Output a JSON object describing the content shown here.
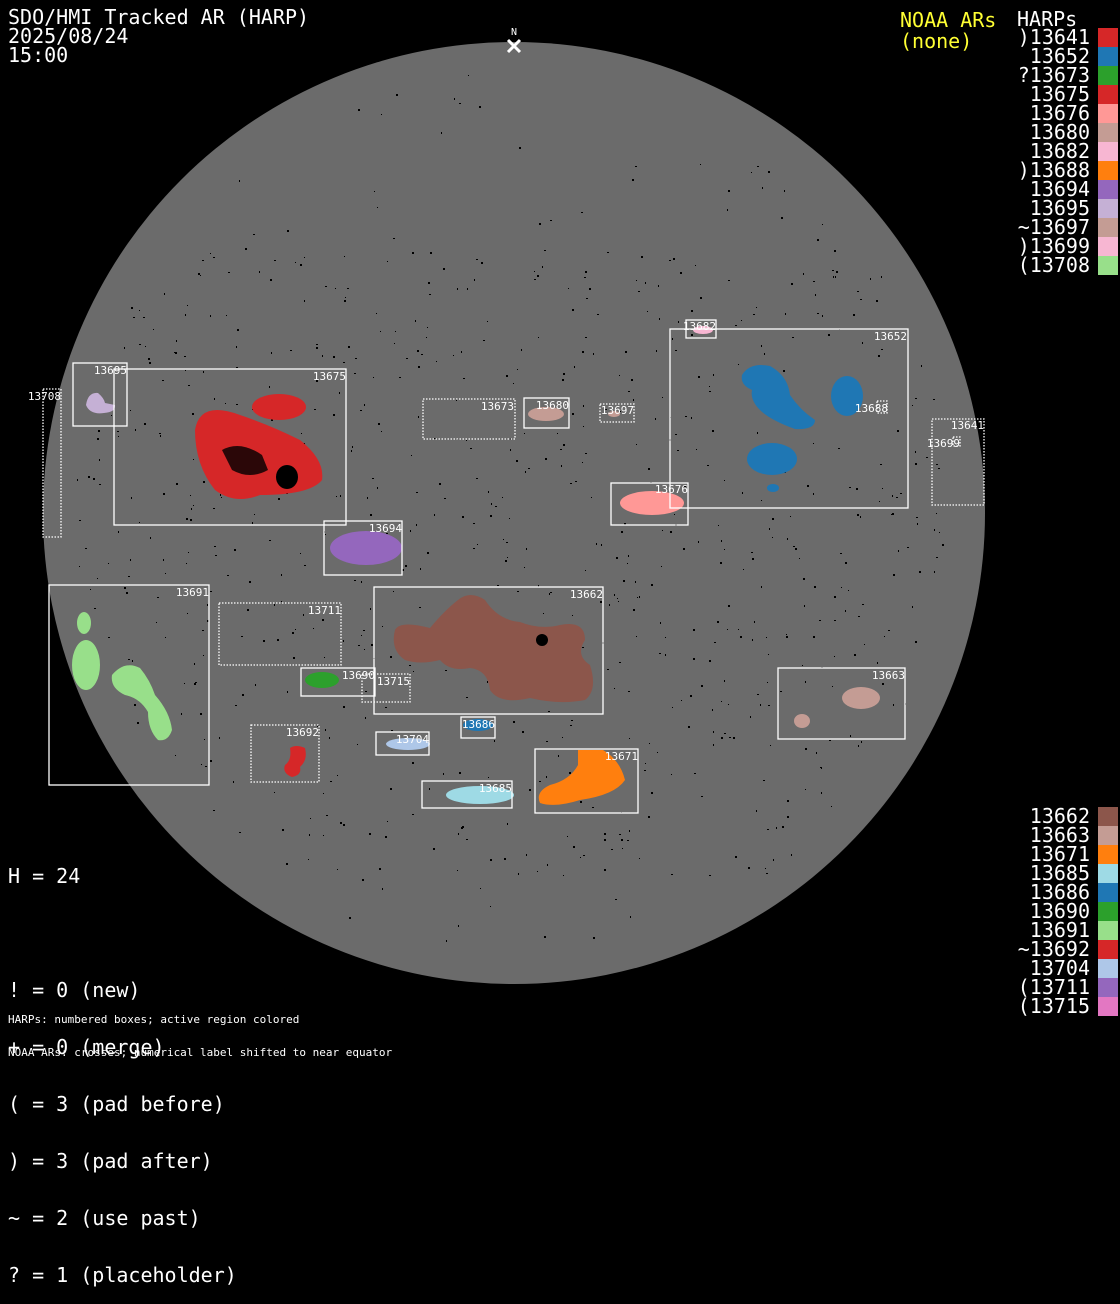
{
  "header": {
    "title": "SDO/HMI Tracked AR (HARP)",
    "date": "2025/08/24",
    "time": "15:00"
  },
  "north_label": "N",
  "noaa": {
    "title": "NOAA ARs",
    "value": "(none)",
    "color": "#ffff33"
  },
  "harps_title": "HARPs",
  "legend_top": [
    {
      "label": ")13641",
      "color": "#d62728"
    },
    {
      "label": "13652",
      "color": "#1f77b4"
    },
    {
      "label": "?13673",
      "color": "#2ca02c"
    },
    {
      "label": "13675",
      "color": "#d62728"
    },
    {
      "label": "13676",
      "color": "#ff9896"
    },
    {
      "label": "13680",
      "color": "#c49c94"
    },
    {
      "label": "13682",
      "color": "#f7b6d2"
    },
    {
      "label": ")13688",
      "color": "#ff7f0e"
    },
    {
      "label": "13694",
      "color": "#9467bd"
    },
    {
      "label": "13695",
      "color": "#c5b0d5"
    },
    {
      "label": "~13697",
      "color": "#c49c94"
    },
    {
      "label": ")13699",
      "color": "#f7b6d2"
    },
    {
      "label": "(13708",
      "color": "#98df8a"
    }
  ],
  "legend_bottom": [
    {
      "label": "13662",
      "color": "#8c564b"
    },
    {
      "label": "13663",
      "color": "#c49c94"
    },
    {
      "label": "13671",
      "color": "#ff7f0e"
    },
    {
      "label": "13685",
      "color": "#9edae5"
    },
    {
      "label": "13686",
      "color": "#1f77b4"
    },
    {
      "label": "13690",
      "color": "#2ca02c"
    },
    {
      "label": "13691",
      "color": "#98df8a"
    },
    {
      "label": "~13692",
      "color": "#d62728"
    },
    {
      "label": "13704",
      "color": "#aec7e8"
    },
    {
      "label": "(13711",
      "color": "#9467bd"
    },
    {
      "label": "(13715",
      "color": "#e377c2"
    }
  ],
  "stats": {
    "h": "H = 24",
    "lines": [
      "! = 0 (new)",
      "+ = 0 (merge)",
      "( = 3 (pad before)",
      ") = 3 (pad after)",
      "~ = 2 (use past)",
      "? = 1 (placeholder)"
    ]
  },
  "footer": [
    "HARPs: numbered boxes; active region colored",
    "NOAA ARs: crosses; numerical label shifted to near equator"
  ],
  "boxes": {
    "b13682": "13682",
    "b13652": "13652",
    "b13688": "13688",
    "b13641": "13641",
    "b13699": "13699",
    "b13676": "13676",
    "b13697": "13697",
    "b13680": "13680",
    "b13673": "13673",
    "b13695": "13695",
    "b13675": "13675",
    "b13708": "13708",
    "b13694": "13694",
    "b13691": "13691",
    "b13711": "13711",
    "b13662": "13662",
    "b13690": "13690",
    "b13715": "13715",
    "b13692": "13692",
    "b13686": "13686",
    "b13704": "13704",
    "b13685": "13685",
    "b13671": "13671",
    "b13663": "13663"
  },
  "colors": {
    "disk": "#6b6b6b",
    "background": "#000000",
    "box": "#ffffff"
  }
}
